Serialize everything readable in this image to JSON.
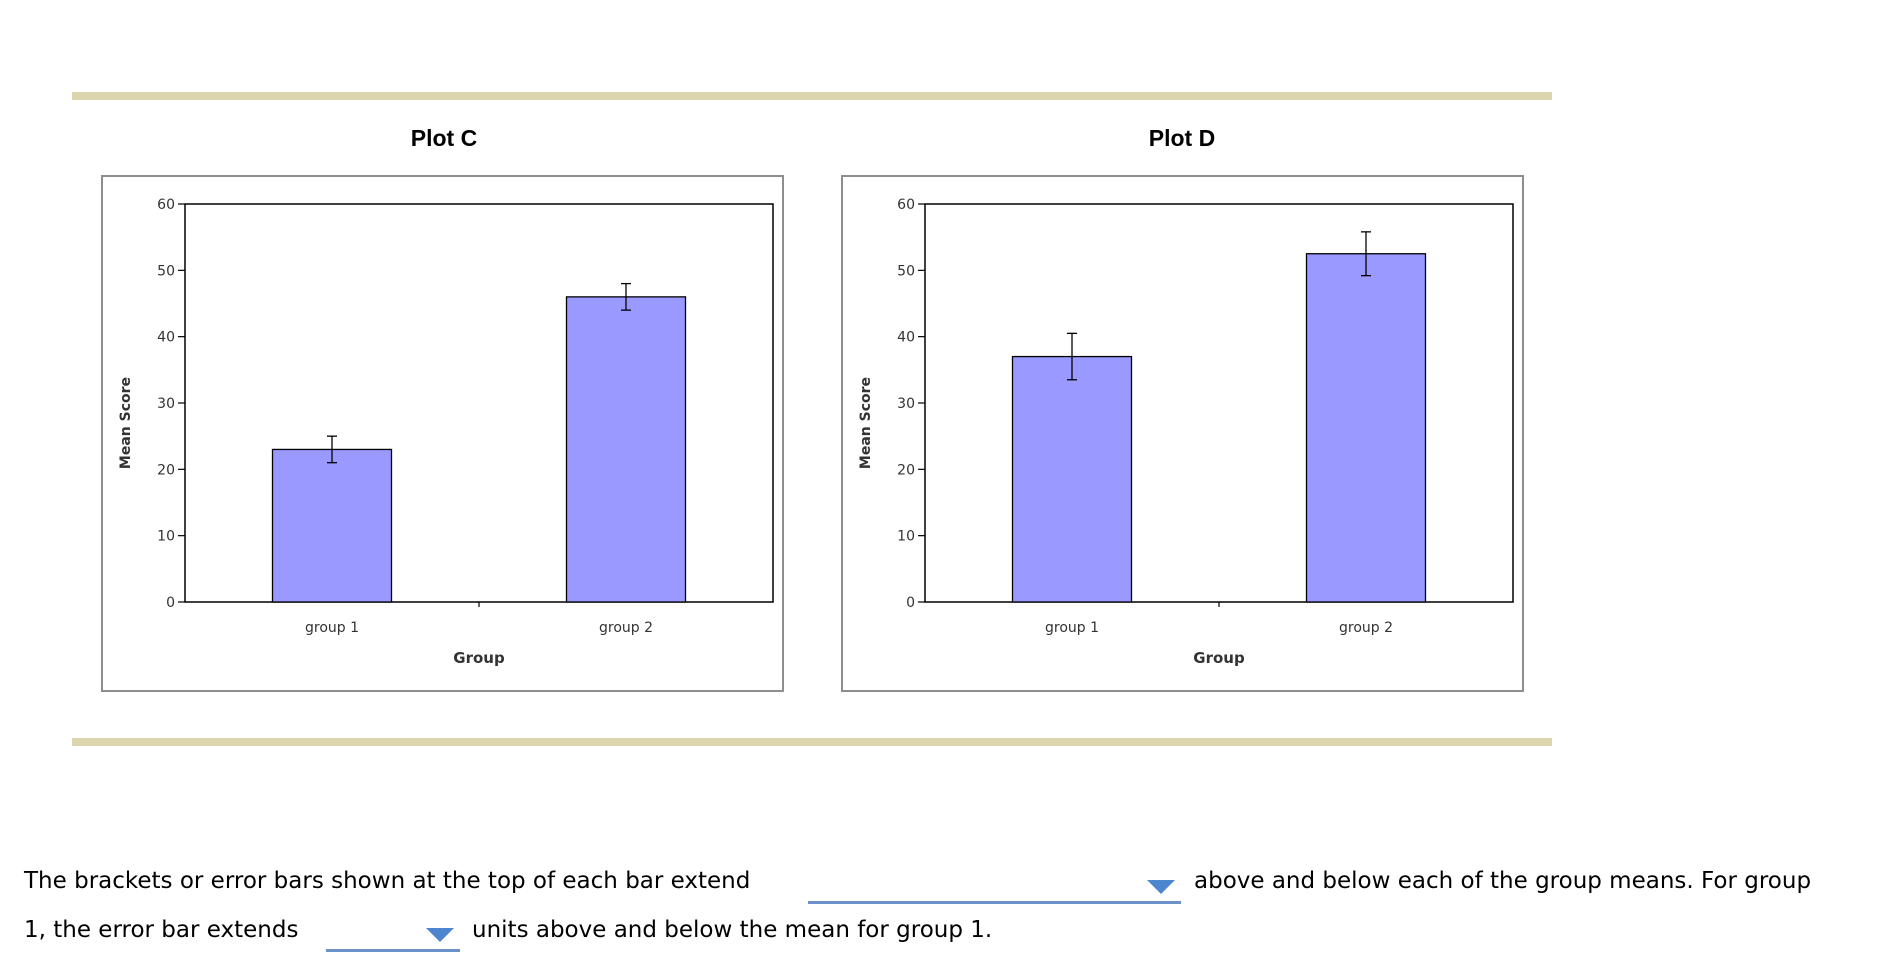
{
  "chart_data": [
    {
      "type": "bar",
      "title": "Plot C",
      "xlabel": "Group",
      "ylabel": "Mean Score",
      "categories": [
        "group 1",
        "group 2"
      ],
      "values": [
        23,
        46
      ],
      "error_bars": [
        2,
        2
      ],
      "ylim": [
        0,
        60
      ],
      "yticks": [
        0,
        10,
        20,
        30,
        40,
        50,
        60
      ],
      "bar_color": "#9999ff",
      "grid": false,
      "legend": "none"
    },
    {
      "type": "bar",
      "title": "Plot D",
      "xlabel": "Group",
      "ylabel": "Mean Score",
      "categories": [
        "group 1",
        "group 2"
      ],
      "values": [
        37,
        52.5
      ],
      "error_bars": [
        3.5,
        3.3
      ],
      "ylim": [
        0,
        60
      ],
      "yticks": [
        0,
        10,
        20,
        30,
        40,
        50,
        60
      ],
      "bar_color": "#9999ff",
      "grid": false,
      "legend": "none"
    }
  ],
  "question": {
    "line1_start": "The brackets or error bars shown at the top of each bar extend",
    "line1_end": "above and below each of the group means. For group",
    "line2_start": "1, the error bar extends",
    "line2_end": "units above and below the mean for group 1.",
    "dropdown1_value": "",
    "dropdown2_value": ""
  },
  "colors": {
    "rule": "#ddd5ae",
    "dropdown_accent": "#4d86cf"
  }
}
